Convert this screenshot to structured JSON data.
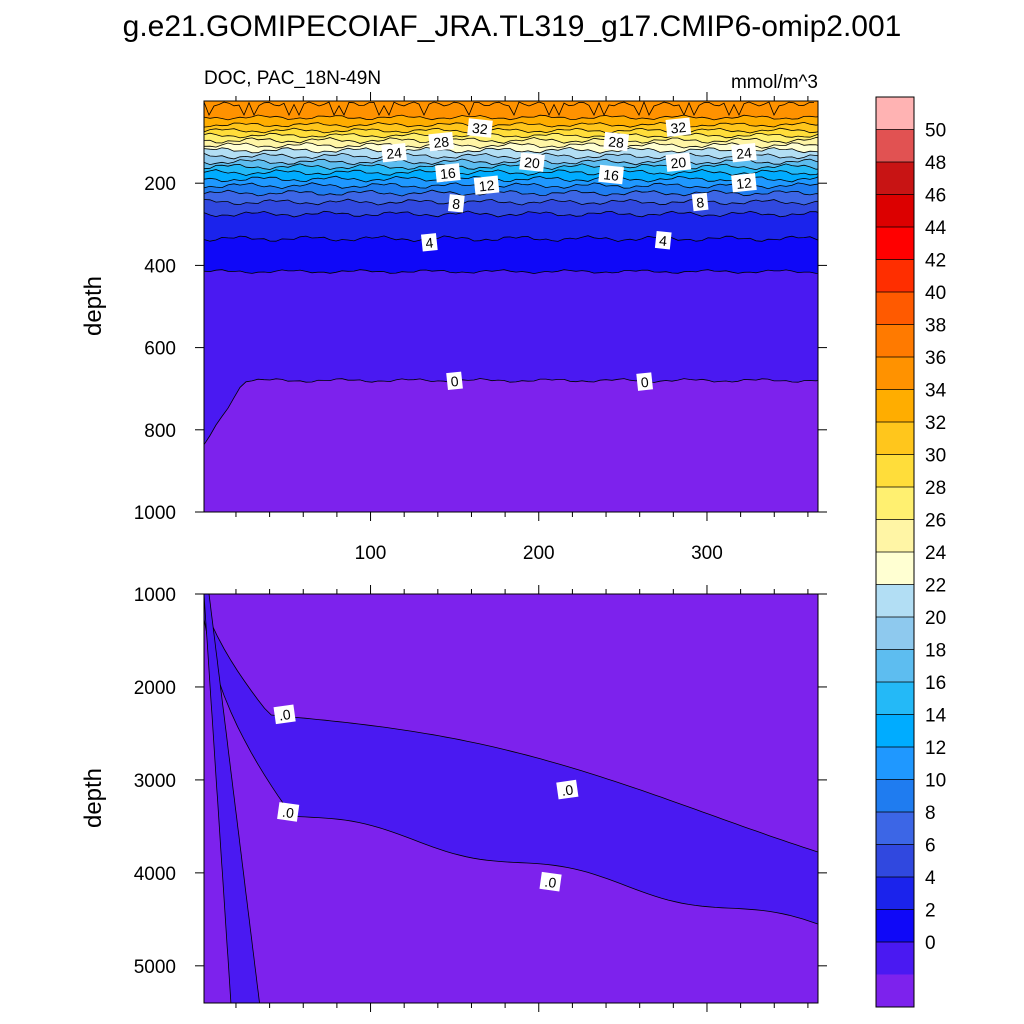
{
  "title": "g.e21.GOMIPECOIAF_JRA.TL319_g17.CMIP6-omip2.001",
  "subtitle_left": "DOC, PAC_18N-49N",
  "subtitle_right": "mmol/m^3",
  "chart_data": [
    {
      "type": "contour",
      "panel": "upper",
      "ylabel": "depth",
      "xlabel": "",
      "xlim": [
        1,
        366
      ],
      "ylim": [
        1000,
        0
      ],
      "x_ticks": [
        100,
        200,
        300
      ],
      "x_tick_labels": [
        "100",
        "200",
        "300"
      ],
      "y_ticks": [
        200,
        400,
        600,
        800,
        1000
      ],
      "y_tick_labels": [
        "200",
        "400",
        "600",
        "800",
        "1000"
      ],
      "contour_depths": [
        {
          "level": 36,
          "depth": 40
        },
        {
          "level": 34,
          "depth": 58
        },
        {
          "level": 32,
          "depth": 72
        },
        {
          "level": 30,
          "depth": 84
        },
        {
          "level": 28,
          "depth": 96
        },
        {
          "level": 26,
          "depth": 108
        },
        {
          "level": 24,
          "depth": 120
        },
        {
          "level": 22,
          "depth": 134
        },
        {
          "level": 20,
          "depth": 148
        },
        {
          "level": 18,
          "depth": 160
        },
        {
          "level": 16,
          "depth": 174
        },
        {
          "level": 14,
          "depth": 190
        },
        {
          "level": 12,
          "depth": 206
        },
        {
          "level": 10,
          "depth": 224
        },
        {
          "level": 8,
          "depth": 246
        },
        {
          "level": 6,
          "depth": 275
        },
        {
          "level": 4,
          "depth": 335
        },
        {
          "level": 2,
          "depth": 415
        },
        {
          "level": 0,
          "depth": 680
        }
      ],
      "contour_labels": [
        {
          "text": "32",
          "x": 165,
          "y": 67
        },
        {
          "text": "32",
          "x": 283,
          "y": 65
        },
        {
          "text": "28",
          "x": 142,
          "y": 100
        },
        {
          "text": "28",
          "x": 246,
          "y": 100
        },
        {
          "text": "24",
          "x": 114,
          "y": 127
        },
        {
          "text": "24",
          "x": 322,
          "y": 127
        },
        {
          "text": "20",
          "x": 196,
          "y": 150
        },
        {
          "text": "20",
          "x": 283,
          "y": 150
        },
        {
          "text": "16",
          "x": 146,
          "y": 176
        },
        {
          "text": "16",
          "x": 243,
          "y": 180
        },
        {
          "text": "12",
          "x": 169,
          "y": 206
        },
        {
          "text": "12",
          "x": 322,
          "y": 200
        },
        {
          "text": "8",
          "x": 151,
          "y": 250
        },
        {
          "text": "8",
          "x": 296,
          "y": 247
        },
        {
          "text": "4",
          "x": 135,
          "y": 345
        },
        {
          "text": "4",
          "x": 274,
          "y": 340
        },
        {
          "text": "0",
          "x": 150,
          "y": 682
        },
        {
          "text": "0",
          "x": 263,
          "y": 684
        }
      ]
    },
    {
      "type": "contour",
      "panel": "lower",
      "ylabel": "depth",
      "xlabel": "",
      "xlim": [
        1,
        366
      ],
      "ylim": [
        5400,
        1000
      ],
      "x_ticks": [
        100,
        200,
        300
      ],
      "x_tick_labels": [
        "",
        "",
        ""
      ],
      "y_ticks": [
        1000,
        2000,
        3000,
        4000,
        5000
      ],
      "y_tick_labels": [
        "1000",
        "2000",
        "3000",
        "4000",
        "5000"
      ],
      "contour_labels": [
        {
          "text": ".0",
          "x": 49,
          "y": 2300
        },
        {
          "text": ".0",
          "x": 51,
          "y": 3350
        },
        {
          "text": ".0",
          "x": 217,
          "y": 3110
        },
        {
          "text": ".0",
          "x": 207,
          "y": 4100
        }
      ]
    }
  ],
  "colorbar": {
    "labels": [
      "50",
      "48",
      "46",
      "44",
      "42",
      "40",
      "38",
      "36",
      "34",
      "32",
      "30",
      "28",
      "26",
      "24",
      "22",
      "20",
      "18",
      "16",
      "14",
      "12",
      "10",
      "8",
      "6",
      "4",
      "2",
      "0"
    ],
    "colors": [
      "#ffb3b3",
      "#e15252",
      "#c81414",
      "#dc0000",
      "#ff0000",
      "#ff2e00",
      "#ff5a00",
      "#ff7a00",
      "#ff9200",
      "#ffad00",
      "#ffc61c",
      "#ffdd3a",
      "#fff070",
      "#fff5a5",
      "#ffffd2",
      "#b2def4",
      "#8ec9ee",
      "#5dbdf0",
      "#24b9f7",
      "#00acff",
      "#1f98ff",
      "#1f7cf0",
      "#3c66e6",
      "#3048df",
      "#1b23ec",
      "#0f08f8",
      "#4a19f2",
      "#7d22ed"
    ]
  }
}
